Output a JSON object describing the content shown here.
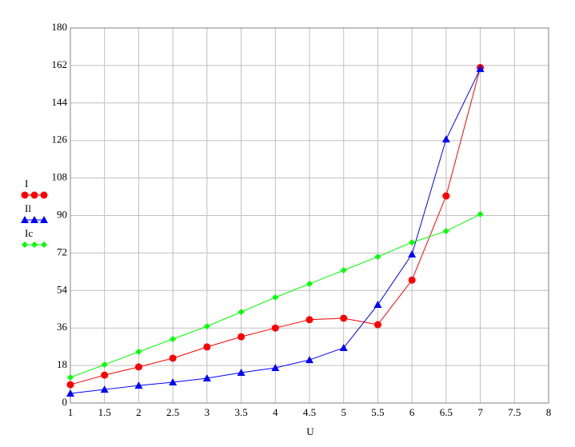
{
  "chart_data": {
    "type": "line",
    "x_label": "U",
    "x": [
      1,
      1.5,
      2,
      2.5,
      3,
      3.5,
      4,
      4.5,
      5,
      5.5,
      6,
      6.5,
      7
    ],
    "series": [
      {
        "name": "I",
        "color": "#ff0000",
        "marker": "circle",
        "values": [
          8.8,
          13.4,
          17.3,
          21.5,
          26.9,
          31.8,
          36,
          40,
          40.7,
          37.6,
          59,
          99.4,
          161
        ]
      },
      {
        "name": "Il",
        "color": "#0000ff",
        "marker": "triangle",
        "values": [
          4.6,
          6.5,
          8.4,
          10,
          11.9,
          14.6,
          16.9,
          20.7,
          26.5,
          47.2,
          71.4,
          126.6,
          160.4
        ]
      },
      {
        "name": "Ic",
        "color": "#00ff00",
        "marker": "diamond",
        "values": [
          12.3,
          18.4,
          24.6,
          30.7,
          36.8,
          43.7,
          50.7,
          57.2,
          63.7,
          70.2,
          77.1,
          82.5,
          90.6
        ]
      }
    ],
    "xlim": [
      1,
      8
    ],
    "xticks": [
      1,
      1.5,
      2,
      2.5,
      3,
      3.5,
      4,
      4.5,
      5,
      5.5,
      6,
      6.5,
      7,
      7.5,
      8
    ],
    "ylim": [
      0,
      180
    ],
    "yticks": [
      0,
      18,
      36,
      54,
      72,
      90,
      108,
      126,
      144,
      162,
      180
    ],
    "grid": true,
    "legend": "left"
  }
}
